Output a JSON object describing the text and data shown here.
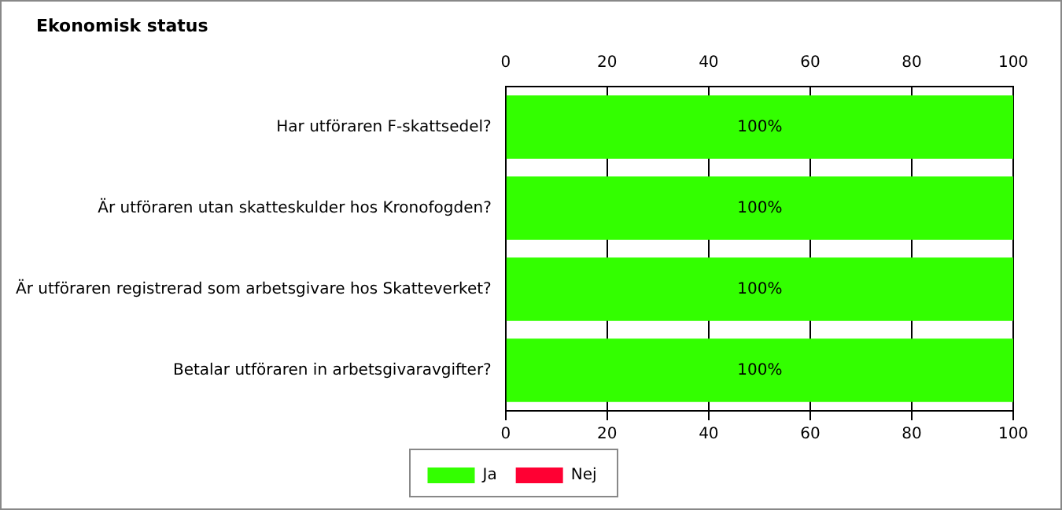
{
  "chart_data": {
    "type": "bar",
    "orientation": "horizontal",
    "stacked": true,
    "title": "Ekonomisk status",
    "categories": [
      "Har utföraren F-skattsedel?",
      "Är utföraren utan skatteskulder hos Kronofogden?",
      "Är utföraren registrerad som arbetsgivare hos Skatteverket?",
      "Betalar utföraren in arbetsgivaravgifter?"
    ],
    "series": [
      {
        "name": "Ja",
        "color": "#33ff00",
        "values": [
          100,
          100,
          100,
          100
        ],
        "value_labels": [
          "100%",
          "100%",
          "100%",
          "100%"
        ]
      },
      {
        "name": "Nej",
        "color": "#ff0033",
        "values": [
          0,
          0,
          0,
          0
        ]
      }
    ],
    "xlim": [
      0,
      100
    ],
    "xticks": [
      0,
      20,
      40,
      60,
      80,
      100
    ],
    "x2lim": [
      0,
      100
    ],
    "x2ticks": [
      0,
      20,
      40,
      60,
      80,
      100
    ],
    "grid": "x",
    "legend": "bottom"
  }
}
